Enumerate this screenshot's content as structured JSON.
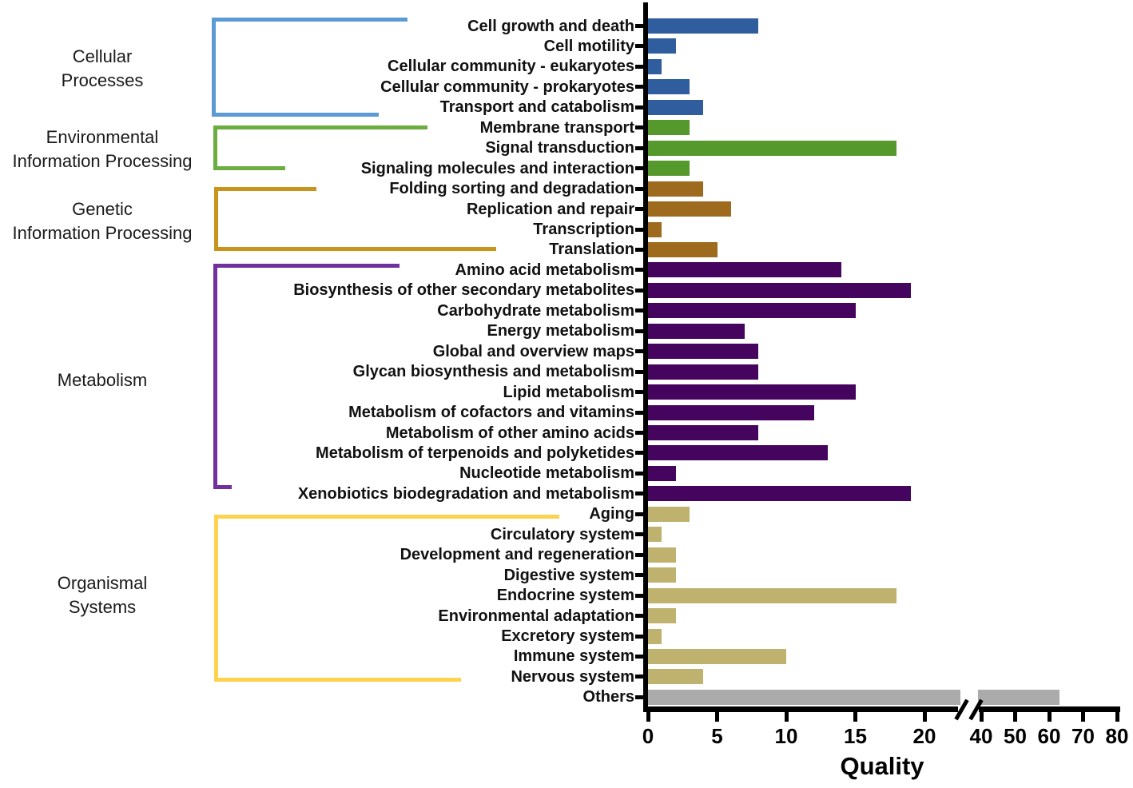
{
  "chart_data": {
    "type": "bar",
    "orientation": "horizontal",
    "title": "",
    "xlabel": "Quality",
    "x_axis": {
      "segment1_range": [
        0,
        20
      ],
      "segment2_range": [
        40,
        80
      ],
      "segment1_ticks": [
        0,
        5,
        10,
        15,
        20
      ],
      "segment2_ticks": [
        40,
        50,
        60,
        70,
        80
      ],
      "has_break": true,
      "break_between": [
        20,
        40
      ]
    },
    "grid": false,
    "legend": false,
    "groups": [
      {
        "name": "Cellular Processes",
        "label_lines": [
          "Cellular",
          "Processes"
        ],
        "bar_color": "#2F5D9E",
        "bracket_color": "#5B9BD5",
        "items": [
          {
            "label": "Cell growth and death",
            "value": 8
          },
          {
            "label": "Cell motility",
            "value": 2
          },
          {
            "label": "Cellular community - eukaryotes",
            "value": 1
          },
          {
            "label": "Cellular community - prokaryotes",
            "value": 3
          },
          {
            "label": "Transport and catabolism",
            "value": 4
          }
        ]
      },
      {
        "name": "Environmental Information Processing",
        "label_lines": [
          "Environmental",
          "Information Processing"
        ],
        "bar_color": "#55982C",
        "bracket_color": "#6BAD3F",
        "items": [
          {
            "label": "Membrane transport",
            "value": 3
          },
          {
            "label": "Signal transduction",
            "value": 18
          },
          {
            "label": "Signaling molecules and interaction",
            "value": 3
          }
        ]
      },
      {
        "name": "Genetic Information Processing",
        "label_lines": [
          "Genetic",
          "Information Processing"
        ],
        "bar_color": "#9D6A1E",
        "bracket_color": "#C8941B",
        "items": [
          {
            "label": "Folding sorting and degradation",
            "value": 4
          },
          {
            "label": "Replication and repair",
            "value": 6
          },
          {
            "label": "Transcription",
            "value": 1
          },
          {
            "label": "Translation",
            "value": 5
          }
        ]
      },
      {
        "name": "Metabolism",
        "label_lines": [
          "Metabolism"
        ],
        "bar_color": "#45055F",
        "bracket_color": "#7030A0",
        "items": [
          {
            "label": "Amino acid metabolism",
            "value": 14
          },
          {
            "label": "Biosynthesis of other secondary metabolites",
            "value": 19
          },
          {
            "label": "Carbohydrate metabolism",
            "value": 15
          },
          {
            "label": "Energy metabolism",
            "value": 7
          },
          {
            "label": "Global and overview maps",
            "value": 8
          },
          {
            "label": "Glycan biosynthesis and metabolism",
            "value": 8
          },
          {
            "label": "Lipid metabolism",
            "value": 15
          },
          {
            "label": "Metabolism of cofactors and vitamins",
            "value": 12
          },
          {
            "label": "Metabolism of other amino acids",
            "value": 8
          },
          {
            "label": "Metabolism of terpenoids and polyketides",
            "value": 13
          },
          {
            "label": "Nucleotide metabolism",
            "value": 2
          },
          {
            "label": "Xenobiotics biodegradation and metabolism",
            "value": 19
          }
        ]
      },
      {
        "name": "Organismal Systems",
        "label_lines": [
          "Organismal",
          "Systems"
        ],
        "bar_color": "#BFB26E",
        "bracket_color": "#FDD24F",
        "items": [
          {
            "label": "Aging",
            "value": 3
          },
          {
            "label": "Circulatory system",
            "value": 1
          },
          {
            "label": "Development and regeneration",
            "value": 2
          },
          {
            "label": "Digestive system",
            "value": 2
          },
          {
            "label": "Endocrine system",
            "value": 18
          },
          {
            "label": "Environmental adaptation",
            "value": 2
          },
          {
            "label": "Excretory system",
            "value": 1
          },
          {
            "label": "Immune system",
            "value": 10
          },
          {
            "label": "Nervous system",
            "value": 4
          }
        ]
      },
      {
        "name": "",
        "label_lines": [],
        "bar_color": "#ABABAB",
        "bracket_color": "",
        "items": [
          {
            "label": "Others",
            "value": 63
          }
        ]
      }
    ],
    "categories": [
      "Cell growth and death",
      "Cell motility",
      "Cellular community - eukaryotes",
      "Cellular community - prokaryotes",
      "Transport and catabolism",
      "Membrane transport",
      "Signal transduction",
      "Signaling molecules and interaction",
      "Folding sorting and degradation",
      "Replication and repair",
      "Transcription",
      "Translation",
      "Amino acid metabolism",
      "Biosynthesis of other secondary metabolites",
      "Carbohydrate metabolism",
      "Energy metabolism",
      "Global and overview maps",
      "Glycan biosynthesis and metabolism",
      "Lipid metabolism",
      "Metabolism of cofactors and vitamins",
      "Metabolism of other amino acids",
      "Metabolism of terpenoids and polyketides",
      "Nucleotide metabolism",
      "Xenobiotics biodegradation and metabolism",
      "Aging",
      "Circulatory system",
      "Development and regeneration",
      "Digestive system",
      "Endocrine system",
      "Environmental adaptation",
      "Excretory system",
      "Immune system",
      "Nervous system",
      "Others"
    ],
    "values": [
      8,
      2,
      1,
      3,
      4,
      3,
      18,
      3,
      4,
      6,
      1,
      5,
      14,
      19,
      15,
      7,
      8,
      8,
      15,
      12,
      8,
      13,
      2,
      19,
      3,
      1,
      2,
      2,
      18,
      2,
      1,
      10,
      4,
      63
    ]
  }
}
